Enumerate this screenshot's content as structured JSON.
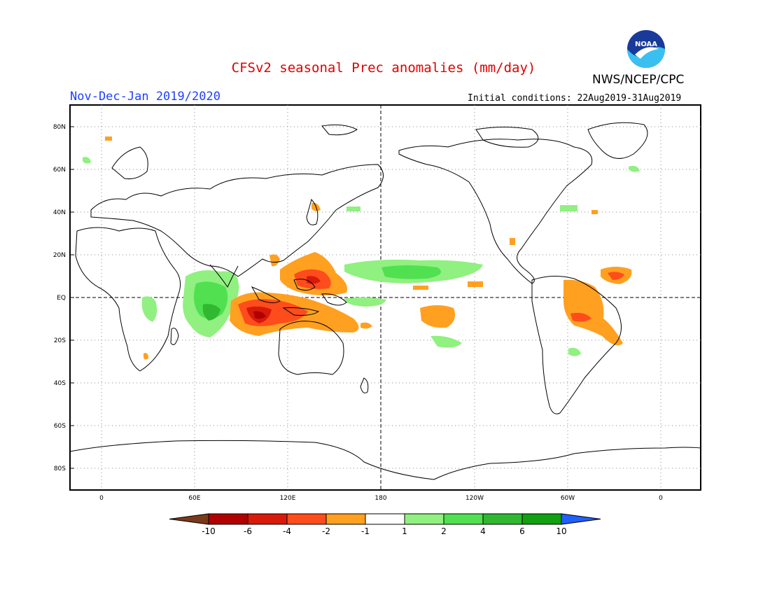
{
  "title": "CFSv2 seasonal Prec anomalies (mm/day)",
  "agency": "NWS/NCEP/CPC",
  "logo_text": "NOAA",
  "period": "Nov-Dec-Jan 2019/2020",
  "initial_conditions": "Initial conditions: 22Aug2019-31Aug2019",
  "lat_labels": [
    "80N",
    "60N",
    "40N",
    "20N",
    "EQ",
    "20S",
    "40S",
    "60S",
    "80S"
  ],
  "lon_labels": [
    "0",
    "60E",
    "120E",
    "180",
    "120W",
    "60W",
    "0"
  ],
  "colorbar": {
    "labels": [
      "-10",
      "-6",
      "-4",
      "-2",
      "-1",
      "1",
      "2",
      "4",
      "6",
      "10"
    ],
    "colors": [
      "#7a3a1a",
      "#b00000",
      "#d81a0a",
      "#ff4c1c",
      "#ffa020",
      "#ffffff",
      "#90f080",
      "#50e050",
      "#30b830",
      "#10a010",
      "#2060ff"
    ]
  },
  "colors": {
    "title": "#e00000",
    "period": "#2040ff",
    "dry_strong": "#b00000",
    "dry_mid": "#d81a0a",
    "dry_low": "#ff4c1c",
    "dry_weak": "#ffa020",
    "wet_weak": "#90f080",
    "wet_mid": "#50e050",
    "wet_strong": "#30b830"
  }
}
